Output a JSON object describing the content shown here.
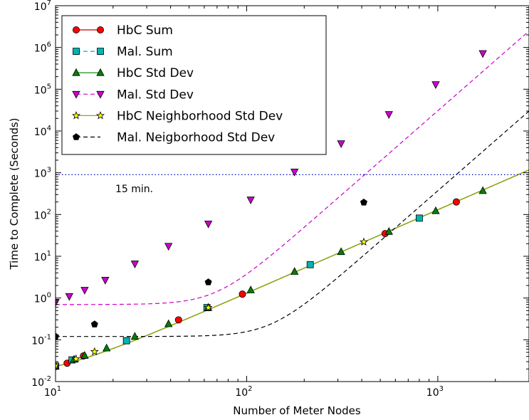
{
  "chart_data": {
    "type": "line",
    "title": "",
    "xlabel": "Number of Meter Nodes",
    "ylabel": "Time to Complete (Seconds)",
    "xscale": "log",
    "yscale": "log",
    "xlim": [
      10,
      3000
    ],
    "ylim": [
      0.01,
      10000000
    ],
    "x_tick_labels": [
      {
        "value": 10,
        "base": "10",
        "exp": "1"
      },
      {
        "value": 100,
        "base": "10",
        "exp": "2"
      },
      {
        "value": 1000,
        "base": "10",
        "exp": "3"
      }
    ],
    "y_tick_labels": [
      {
        "value": 0.01,
        "base": "10",
        "exp": "-2"
      },
      {
        "value": 0.1,
        "base": "10",
        "exp": "-1"
      },
      {
        "value": 1,
        "base": "10",
        "exp": "0"
      },
      {
        "value": 10,
        "base": "10",
        "exp": "1"
      },
      {
        "value": 100,
        "base": "10",
        "exp": "2"
      },
      {
        "value": 1000,
        "base": "10",
        "exp": "3"
      },
      {
        "value": 10000,
        "base": "10",
        "exp": "4"
      },
      {
        "value": 100000,
        "base": "10",
        "exp": "5"
      },
      {
        "value": 1000000,
        "base": "10",
        "exp": "6"
      },
      {
        "value": 10000000,
        "base": "10",
        "exp": "7"
      }
    ],
    "grid": false,
    "legend_position": "upper-left",
    "reference_line": {
      "y": 900,
      "label": "15 min.",
      "color": "#0000cc",
      "style": "dotted"
    },
    "series": [
      {
        "name": "HbC Sum",
        "color": "#ff0000",
        "marker": "circle",
        "line_style": "solid",
        "line_color": "#cc0000",
        "curve": {
          "type": "powerlaw",
          "a": 0.00013,
          "b": 2,
          "c": 0.0099
        },
        "points": [
          [
            10,
            0.023
          ],
          [
            11.5,
            0.0275
          ],
          [
            14,
            0.041
          ],
          [
            44,
            0.3
          ],
          [
            95,
            1.24
          ],
          [
            530,
            35
          ],
          [
            1250,
            200
          ]
        ]
      },
      {
        "name": "Mal. Sum",
        "color": "#00b4b4",
        "marker": "square",
        "line_style": "dashed",
        "line_color": "#00b4b4",
        "curve": {
          "type": "powerlaw",
          "a": 0.00013,
          "b": 2,
          "c": 0.0099
        },
        "points": [
          [
            10,
            0.0235
          ],
          [
            12.2,
            0.033
          ],
          [
            23.5,
            0.095
          ],
          [
            62,
            0.59
          ],
          [
            215,
            6.3
          ],
          [
            800,
            82
          ]
        ]
      },
      {
        "name": "HbC Std Dev",
        "color": "#008000",
        "marker": "triangle-up",
        "line_style": "solid",
        "line_color": "#008000",
        "curve": {
          "type": "powerlaw",
          "a": 0.00013,
          "b": 2,
          "c": 0.0099
        },
        "points": [
          [
            10,
            0.023
          ],
          [
            12.5,
            0.034
          ],
          [
            14.2,
            0.042
          ],
          [
            18.5,
            0.063
          ],
          [
            26,
            0.12
          ],
          [
            39,
            0.24
          ],
          [
            63,
            0.59
          ],
          [
            105,
            1.55
          ],
          [
            178,
            4.3
          ],
          [
            312,
            12.8
          ],
          [
            555,
            39
          ],
          [
            975,
            122
          ],
          [
            1720,
            370
          ]
        ]
      },
      {
        "name": "Mal. Std Dev",
        "color": "#cc00cc",
        "marker": "triangle-down",
        "line_style": "dashed",
        "line_color": "#cc00cc",
        "curve": {
          "type": "powerlaw",
          "a": 3.05e-08,
          "b": 4,
          "c": 0.7
        },
        "points": [
          [
            10,
            0.8
          ],
          [
            11.8,
            1.1
          ],
          [
            14.2,
            1.55
          ],
          [
            18.2,
            2.7
          ],
          [
            26,
            6.6
          ],
          [
            39,
            17.5
          ],
          [
            63,
            60
          ],
          [
            105,
            225
          ],
          [
            178,
            1050
          ],
          [
            312,
            5000
          ],
          [
            555,
            25000
          ],
          [
            975,
            130000
          ],
          [
            1720,
            720000
          ]
        ]
      },
      {
        "name": "HbC Neighborhood Std Dev",
        "color": "#ffff00",
        "marker": "star",
        "line_style": "solid",
        "line_color": "#9aa800",
        "curve": {
          "type": "powerlaw",
          "a": 0.00013,
          "b": 2,
          "c": 0.0099
        },
        "points": [
          [
            10,
            0.024
          ],
          [
            12.8,
            0.035
          ],
          [
            16,
            0.052
          ],
          [
            63,
            0.59
          ],
          [
            410,
            22
          ]
        ]
      },
      {
        "name": "Mal. Neigborhood Std Dev",
        "color": "#000000",
        "marker": "pentagon",
        "line_style": "dashed",
        "line_color": "#000000",
        "curve": {
          "type": "powerlaw",
          "a": 3.7e-10,
          "b": 4,
          "c": 0.12
        },
        "points": [
          [
            10,
            0.12
          ],
          [
            16,
            0.235
          ],
          [
            63,
            2.4
          ],
          [
            410,
            195
          ]
        ]
      }
    ]
  }
}
